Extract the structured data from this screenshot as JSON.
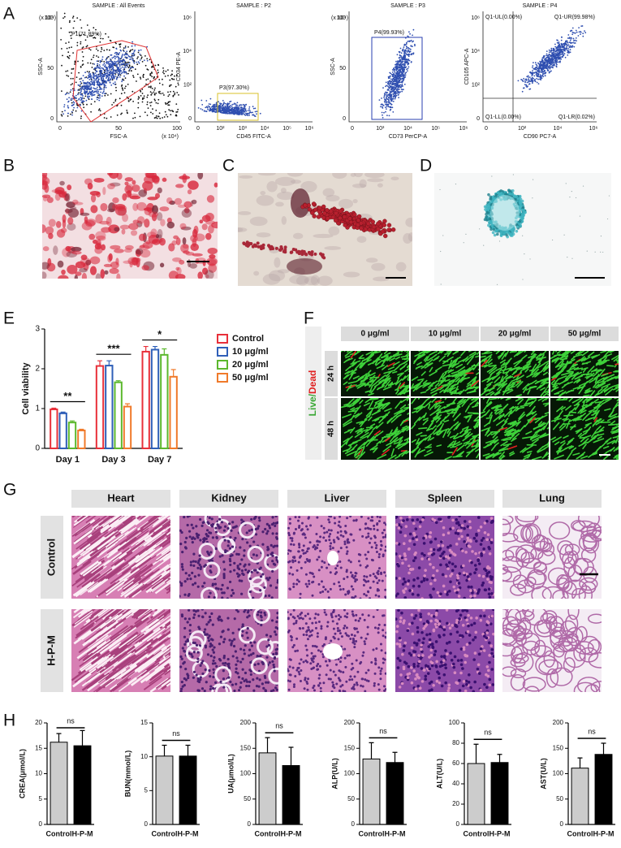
{
  "panel_labels": [
    "A",
    "B",
    "C",
    "D",
    "E",
    "F",
    "G",
    "H"
  ],
  "flow": [
    {
      "title": "SAMPLE : All Events",
      "gate": "P1(71.89%)",
      "x_label": "FSC-A",
      "y_label": "SSC-A",
      "x_mult": "(x 10⁴)",
      "y_mult": "(x 10⁴)",
      "xticks": [
        "0",
        "50",
        "100"
      ],
      "yticks": [
        "0",
        "50",
        "100"
      ]
    },
    {
      "title": "SAMPLE : P2",
      "gate": "P3(97.30%)",
      "x_label": "CD45 FITC-A",
      "y_label": "CD34 PE-A",
      "xticks": [
        "0",
        "10²",
        "10³",
        "10⁴",
        "10⁵",
        "10⁶"
      ],
      "yticks": [
        "0",
        "10²",
        "10⁴",
        "10⁶"
      ]
    },
    {
      "title": "SAMPLE : P3",
      "gate": "P4(99.93%)",
      "x_label": "CD73 PerCP-A",
      "y_label": "SSC-A",
      "y_mult": "(x 10⁴)",
      "xticks": [
        "0",
        "10³",
        "10⁴",
        "10⁵",
        "10⁶"
      ],
      "yticks": [
        "0",
        "50",
        "100"
      ]
    },
    {
      "title": "SAMPLE : P4",
      "quadrants": [
        "Q1-UL(0.00%)",
        "Q1-UR(99.98%)",
        "Q1-LL(0.00%)",
        "Q1-LR(0.02%)"
      ],
      "x_label": "CD90 PC7-A",
      "y_label": "CD105 APC-A",
      "xticks": [
        "0",
        "10²",
        "10⁴",
        "10⁶"
      ],
      "yticks": [
        "0",
        "10²",
        "10⁴",
        "10⁶"
      ]
    }
  ],
  "live_dead": {
    "label_live": "Live/",
    "label_dead": "Dead",
    "columns": [
      "0 μg/ml",
      "10 μg/ml",
      "20 μg/ml",
      "50 μg/ml"
    ],
    "rows": [
      "24 h",
      "48 h"
    ]
  },
  "histology": {
    "columns": [
      "Heart",
      "Kidney",
      "Liver",
      "Spleen",
      "Lung"
    ],
    "rows": [
      "Control",
      "H-P-M"
    ]
  },
  "chart_data": [
    {
      "type": "bar",
      "bar_style": "outline",
      "y_label": "Cell viability",
      "categories": [
        "Day 1",
        "Day 3",
        "Day 7"
      ],
      "series": [
        {
          "name": "Control",
          "color": "#e8303a",
          "values": [
            0.98,
            2.07,
            2.43
          ],
          "errors": [
            0.03,
            0.13,
            0.13
          ]
        },
        {
          "name": "10 μg/ml",
          "color": "#2f5fb8",
          "values": [
            0.88,
            2.08,
            2.48
          ],
          "errors": [
            0.03,
            0.12,
            0.08
          ]
        },
        {
          "name": "20 μg/ml",
          "color": "#5cb82e",
          "values": [
            0.65,
            1.66,
            2.35
          ],
          "errors": [
            0.04,
            0.04,
            0.15
          ]
        },
        {
          "name": "50 μg/ml",
          "color": "#f07a2a",
          "values": [
            0.45,
            1.05,
            1.8
          ],
          "errors": [
            0.03,
            0.07,
            0.18
          ]
        }
      ],
      "annotations": [
        "**",
        "***",
        "*"
      ],
      "ylim": [
        0,
        3
      ],
      "yticks": [
        0,
        1,
        2,
        3
      ]
    },
    {
      "type": "bar",
      "y_label": "CREA(μmol/L)",
      "categories": [
        "Control",
        "H-P-M"
      ],
      "colors": [
        "#cccccc",
        "#000000"
      ],
      "values": [
        16.2,
        15.5
      ],
      "errors": [
        1.7,
        3
      ],
      "annotation": "ns",
      "ylim": [
        0,
        20
      ],
      "yticks": [
        0,
        5,
        10,
        15,
        20
      ]
    },
    {
      "type": "bar",
      "y_label": "BUN(mmol/L)",
      "categories": [
        "Control",
        "H-P-M"
      ],
      "colors": [
        "#cccccc",
        "#000000"
      ],
      "values": [
        10.1,
        10.1
      ],
      "errors": [
        1.6,
        1.6
      ],
      "annotation": "ns",
      "ylim": [
        0,
        15
      ],
      "yticks": [
        0,
        5,
        10,
        15
      ]
    },
    {
      "type": "bar",
      "y_label": "UA(μmol/L)",
      "categories": [
        "Control",
        "H-P-M"
      ],
      "colors": [
        "#cccccc",
        "#000000"
      ],
      "values": [
        141,
        116
      ],
      "errors": [
        30,
        36
      ],
      "annotation": "ns",
      "ylim": [
        0,
        200
      ],
      "yticks": [
        0,
        50,
        100,
        150,
        200
      ]
    },
    {
      "type": "bar",
      "y_label": "ALP(U/L)",
      "categories": [
        "Control",
        "H-P-M"
      ],
      "colors": [
        "#cccccc",
        "#000000"
      ],
      "values": [
        129,
        122
      ],
      "errors": [
        32,
        20
      ],
      "annotation": "ns",
      "ylim": [
        0,
        200
      ],
      "yticks": [
        0,
        50,
        100,
        150,
        200
      ]
    },
    {
      "type": "bar",
      "y_label": "ALT(U/L)",
      "categories": [
        "Control",
        "H-P-M"
      ],
      "colors": [
        "#cccccc",
        "#000000"
      ],
      "values": [
        60,
        61
      ],
      "errors": [
        19,
        8
      ],
      "annotation": "ns",
      "ylim": [
        0,
        100
      ],
      "yticks": [
        0,
        20,
        40,
        60,
        80,
        100
      ]
    },
    {
      "type": "bar",
      "y_label": "AST(U/L)",
      "categories": [
        "Control",
        "H-P-M"
      ],
      "colors": [
        "#cccccc",
        "#000000"
      ],
      "values": [
        111,
        138
      ],
      "errors": [
        20,
        22
      ],
      "annotation": "ns",
      "ylim": [
        0,
        200
      ],
      "yticks": [
        0,
        50,
        100,
        150,
        200
      ]
    }
  ]
}
